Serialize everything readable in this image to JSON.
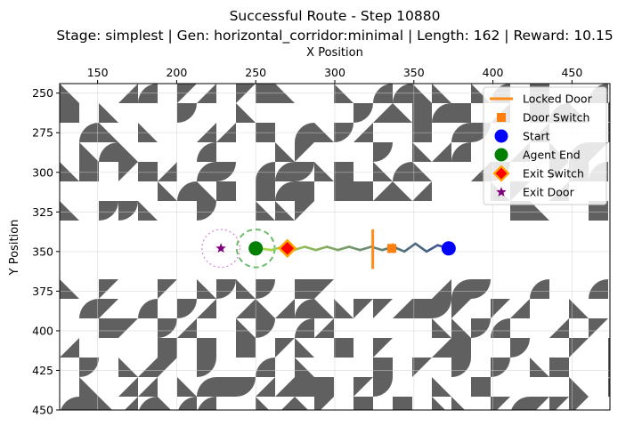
{
  "chart_data": {
    "type": "scatter",
    "title": "Successful Route - Step 10880",
    "subtitle": "Stage: simplest | Gen: horizontal_corridor:minimal | Length: 162 | Reward: 10.15",
    "xlabel": "X Position",
    "ylabel": "Y Position",
    "xlim": [
      126,
      474
    ],
    "ylim": [
      450,
      244
    ],
    "x_axis_position": "top",
    "y_inverted": true,
    "grid": true,
    "xticks": [
      150,
      200,
      250,
      300,
      350,
      400,
      450
    ],
    "yticks": [
      250,
      275,
      300,
      325,
      350,
      375,
      400,
      425,
      450
    ],
    "legend_position": "upper right",
    "colors": {
      "wall": "#606060",
      "locked_door": "#ff8c1a",
      "door_switch": "#ff7f0e",
      "start": "#0000ff",
      "agent_end": "#008000",
      "exit_switch_face": "#ff0000",
      "exit_switch_edge": "#ffa500",
      "exit_door": "#800080",
      "path_start": "#3b528b",
      "path_end": "#a6d84a"
    },
    "legend": [
      {
        "label": "Locked Door",
        "marker": "line"
      },
      {
        "label": "Door Switch",
        "marker": "square"
      },
      {
        "label": "Start",
        "marker": "circle-blue"
      },
      {
        "label": "Agent End",
        "marker": "circle-green"
      },
      {
        "label": "Exit Switch",
        "marker": "diamond"
      },
      {
        "label": "Exit Door",
        "marker": "star"
      }
    ],
    "points": {
      "start": [
        372,
        348
      ],
      "agent_end": [
        250,
        348
      ],
      "exit_switch": [
        270,
        348
      ],
      "door_switch": [
        336,
        348
      ],
      "exit_door": [
        228,
        348
      ],
      "locked_door": {
        "x": 324,
        "y_range": [
          336,
          361
        ]
      }
    },
    "path": {
      "x": [
        372,
        365,
        358,
        351,
        344,
        337,
        330,
        323,
        316,
        309,
        302,
        295,
        288,
        281,
        274,
        267,
        260,
        252
      ],
      "y": [
        348,
        346,
        350,
        345,
        350,
        347,
        349,
        347,
        349,
        347,
        349,
        347,
        349,
        347,
        349,
        347,
        349,
        348
      ]
    },
    "circles": [
      {
        "center": [
          250,
          348
        ],
        "radius": 12,
        "color": "green"
      },
      {
        "center": [
          228,
          348
        ],
        "radius": 12,
        "color": "purple"
      },
      {
        "center": [
          336,
          348
        ],
        "radius": 3,
        "color": "orange"
      }
    ]
  }
}
